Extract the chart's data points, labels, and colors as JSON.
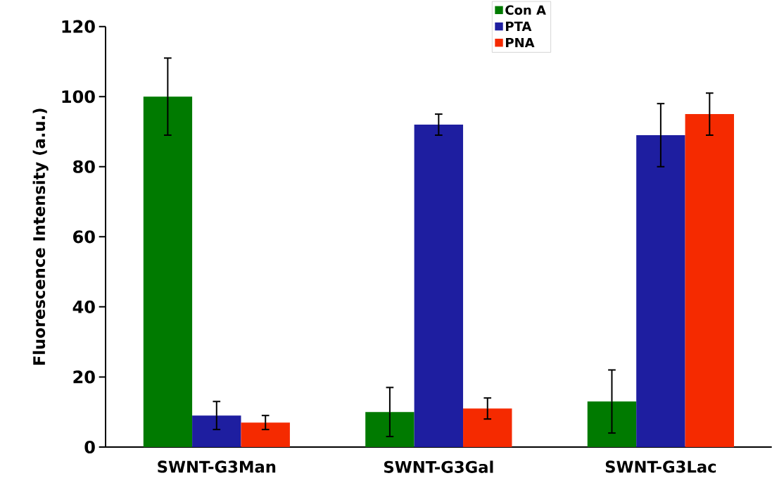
{
  "chart_data": {
    "type": "bar",
    "ylabel": "Fluorescence Intensity (a.u.)",
    "categories": [
      "SWNT-G3Man",
      "SWNT-G3Gal",
      "SWNT-G3Lac"
    ],
    "series": [
      {
        "name": "Con A",
        "color": "#007a00",
        "values": [
          100,
          10,
          13
        ],
        "errors": [
          11,
          7,
          9
        ]
      },
      {
        "name": "PTA",
        "color": "#1e1ea0",
        "values": [
          9,
          92,
          89
        ],
        "errors": [
          4,
          3,
          9
        ]
      },
      {
        "name": "PNA",
        "color": "#f52a00",
        "values": [
          7,
          11,
          95
        ],
        "errors": [
          2,
          3,
          6
        ]
      }
    ],
    "ylim": [
      0,
      120
    ],
    "yticks": [
      0,
      20,
      40,
      60,
      80,
      100,
      120
    ],
    "grid": false,
    "legend": "top right"
  }
}
